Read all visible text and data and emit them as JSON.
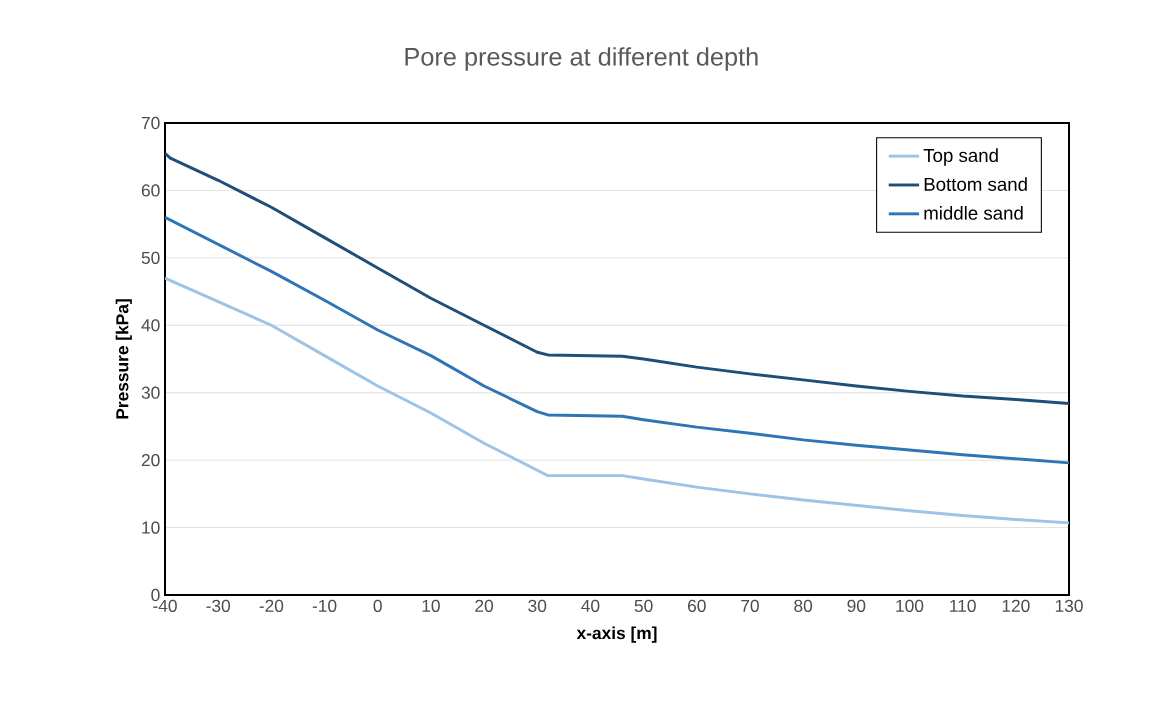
{
  "chart_data": {
    "type": "line",
    "title": "Pore pressure at different depth",
    "xlabel": "x-axis [m]",
    "ylabel": "Pressure [kPa]",
    "xlim": [
      -40,
      130
    ],
    "ylim": [
      0,
      70
    ],
    "xticks": [
      -40,
      -30,
      -20,
      -10,
      0,
      10,
      20,
      30,
      40,
      50,
      60,
      70,
      80,
      90,
      100,
      110,
      120,
      130
    ],
    "yticks": [
      0,
      10,
      20,
      30,
      40,
      50,
      60,
      70
    ],
    "grid": "y",
    "legend": "top right",
    "marker": "none",
    "line_style": "solid",
    "series": [
      {
        "name": "Top sand",
        "color": "#9dc3e6",
        "x": [
          -40,
          -30,
          -20,
          -10,
          0,
          10,
          20,
          30,
          32,
          46,
          50,
          60,
          70,
          80,
          90,
          100,
          110,
          120,
          130
        ],
        "values": [
          47,
          43.5,
          40,
          35.5,
          31,
          27,
          22.5,
          18.5,
          17.7,
          17.7,
          17.2,
          16,
          15,
          14.1,
          13.3,
          12.5,
          11.8,
          11.2,
          10.7
        ]
      },
      {
        "name": "Bottom sand",
        "color": "#1f4e79",
        "x": [
          -40,
          -39,
          -30,
          -20,
          -10,
          0,
          10,
          20,
          30,
          32,
          46,
          50,
          60,
          70,
          80,
          90,
          100,
          110,
          120,
          130
        ],
        "values": [
          65.5,
          64.8,
          61.5,
          57.5,
          53,
          48.5,
          44,
          40,
          36,
          35.6,
          35.4,
          35,
          33.8,
          32.8,
          31.9,
          31,
          30.2,
          29.5,
          29,
          28.4
        ]
      },
      {
        "name": "middle sand",
        "color": "#2e75b6",
        "x": [
          -40,
          -30,
          -20,
          -10,
          0,
          10,
          20,
          30,
          32,
          46,
          50,
          60,
          70,
          80,
          90,
          100,
          110,
          120,
          130
        ],
        "values": [
          56,
          52,
          48,
          43.7,
          39.3,
          35.5,
          31,
          27.2,
          26.7,
          26.5,
          26,
          24.9,
          24,
          23,
          22.2,
          21.5,
          20.8,
          20.2,
          19.6
        ]
      }
    ]
  }
}
